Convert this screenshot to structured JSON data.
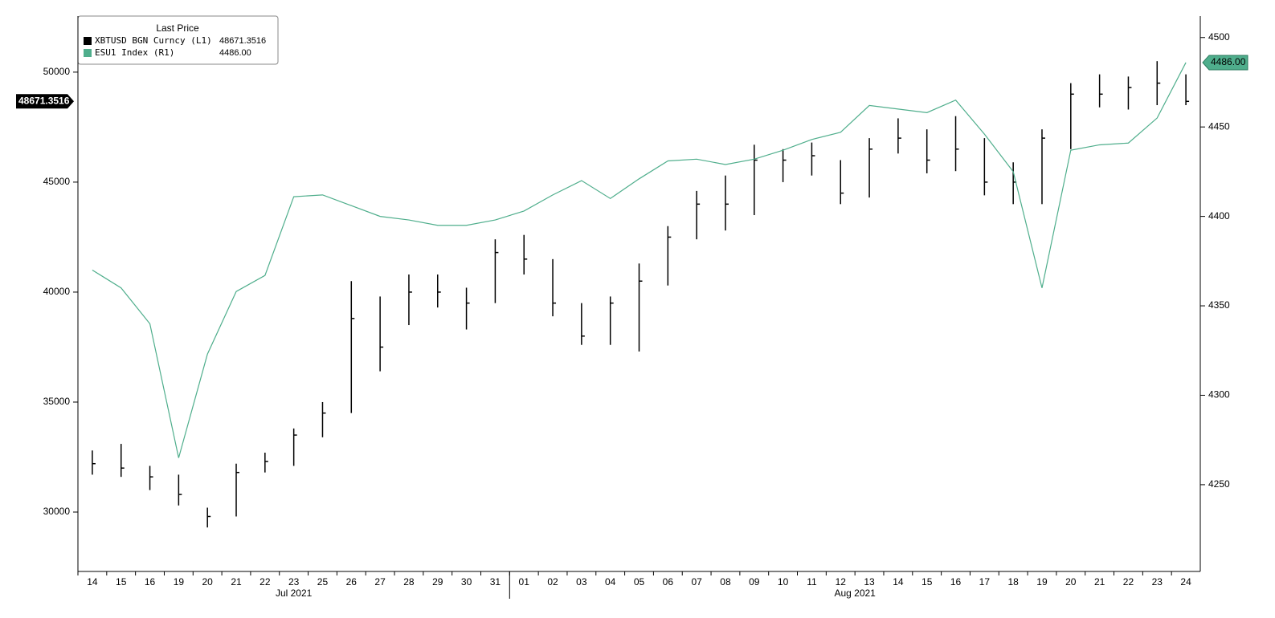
{
  "chart_data": {
    "type": "bar-line",
    "legend_title": "Last Price",
    "categories": [
      "14",
      "15",
      "16",
      "19",
      "20",
      "21",
      "22",
      "23",
      "25",
      "26",
      "27",
      "28",
      "29",
      "30",
      "31",
      "01",
      "02",
      "03",
      "04",
      "05",
      "06",
      "07",
      "08",
      "09",
      "10",
      "11",
      "12",
      "13",
      "14",
      "15",
      "16",
      "17",
      "18",
      "19",
      "20",
      "21",
      "22",
      "23",
      "24"
    ],
    "month_labels": [
      "Jul 2021",
      "Aug 2021"
    ],
    "ylim": [
      27300,
      52550
    ],
    "yticks": [
      30000,
      35000,
      40000,
      45000,
      50000
    ],
    "y2lim": [
      4201.5,
      4512
    ],
    "y2ticks": [
      4250,
      4300,
      4350,
      4400,
      4450,
      4500
    ],
    "series": [
      {
        "name": "XBTUSD BGN Curncy  (L1)",
        "color": "#000000",
        "axis": "y",
        "values": [
          32200,
          32000,
          31600,
          30800,
          29800,
          31800,
          32300,
          33500,
          34500,
          38800,
          37500,
          40000,
          40000,
          39500,
          41800,
          41500,
          39500,
          38000,
          39500,
          40500,
          42500,
          44000,
          44000,
          46000,
          46000,
          46200,
          44500,
          46500,
          47000,
          46000,
          46500,
          45000,
          45000,
          47000,
          49000,
          49000,
          49300,
          49500,
          48671.3516
        ],
        "high": [
          32800,
          33100,
          32100,
          31700,
          30200,
          32200,
          32700,
          33800,
          35000,
          40500,
          39800,
          40800,
          40800,
          40200,
          42400,
          42600,
          41500,
          39500,
          39800,
          41300,
          43000,
          44600,
          45300,
          46700,
          46500,
          46800,
          46000,
          47000,
          47900,
          47400,
          48000,
          47000,
          45900,
          47400,
          49500,
          49900,
          49800,
          50500,
          49900
        ],
        "low": [
          31700,
          31600,
          31000,
          30300,
          29300,
          29800,
          31800,
          32100,
          33400,
          34500,
          36400,
          38500,
          39300,
          38300,
          39500,
          40800,
          38900,
          37600,
          37600,
          37300,
          40300,
          42400,
          42800,
          43500,
          45000,
          45300,
          44000,
          44300,
          46300,
          45400,
          45500,
          44400,
          44000,
          44000,
          46500,
          48400,
          48300,
          48500,
          48500
        ]
      },
      {
        "name": "ESU1 Index  (R1)",
        "color": "#4fae8c",
        "axis": "y2",
        "last_label": "4486.00",
        "values": [
          4370,
          4360,
          4340,
          4265,
          4323,
          4358,
          4367,
          4411,
          4412,
          4406,
          4400,
          4398,
          4395,
          4395,
          4398,
          4403,
          4412,
          4420,
          4410,
          4421,
          4431,
          4432,
          4429,
          4432,
          4437,
          4443,
          4447,
          4462,
          4460,
          4458,
          4465,
          4446,
          4425,
          4360,
          4437,
          4440,
          4441,
          4455,
          4486
        ]
      }
    ]
  }
}
